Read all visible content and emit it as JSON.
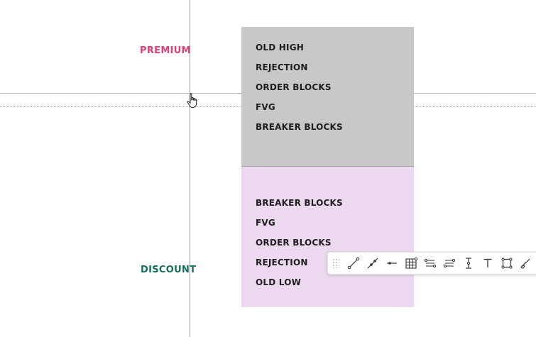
{
  "zones": {
    "premium": {
      "label": "PREMIUM",
      "color": "#e23d75"
    },
    "discount": {
      "label": "DISCOUNT",
      "color": "#12705e"
    }
  },
  "boxes": {
    "top": {
      "background": "#c8c8c8",
      "items": [
        "OLD HIGH",
        "REJECTION",
        "ORDER BLOCKS",
        "FVG",
        "BREAKER BLOCKS"
      ]
    },
    "bottom": {
      "background": "#edd9ef",
      "items": [
        "BREAKER BLOCKS",
        "FVG",
        "ORDER BLOCKS",
        "REJECTION",
        "OLD LOW"
      ]
    }
  },
  "toolbar": {
    "tools": [
      "trend-line-icon",
      "ray-icon",
      "horizontal-ray-icon",
      "grid-icon",
      "parallel-channel-icon",
      "regression-channel-icon",
      "vertical-cursor-icon",
      "text-icon",
      "rectangle-icon",
      "brush-icon"
    ]
  }
}
